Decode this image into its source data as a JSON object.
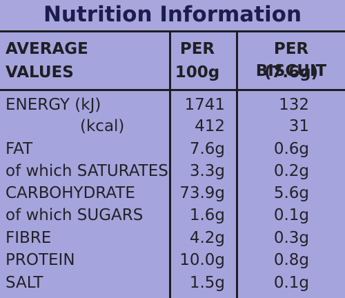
{
  "title": "Nutrition Information",
  "headers": {
    "col0_line1": "AVERAGE",
    "col0_line2": "VALUES",
    "col1_line1": "PER",
    "col1_line2": "100g",
    "col2_line1": "PER BISCUIT",
    "col2_line2": "(7.6g)"
  },
  "rows": [
    {
      "label": "ENERGY (kJ)",
      "per100": "1741",
      "perBiscuit": "132"
    },
    {
      "label": "(kcal)",
      "per100": "412",
      "perBiscuit": "31"
    },
    {
      "label": "FAT",
      "per100": "7.6g",
      "perBiscuit": "0.6g"
    },
    {
      "label": "of which SATURATES",
      "per100": "3.3g",
      "perBiscuit": "0.2g"
    },
    {
      "label": "CARBOHYDRATE",
      "per100": "73.9g",
      "perBiscuit": "5.6g"
    },
    {
      "label": "of which SUGARS",
      "per100": "1.6g",
      "perBiscuit": "0.1g"
    },
    {
      "label": "FIBRE",
      "per100": "4.2g",
      "perBiscuit": "0.3g"
    },
    {
      "label": "PROTEIN",
      "per100": "10.0g",
      "perBiscuit": "0.8g"
    },
    {
      "label": "SALT",
      "per100": "1.5g",
      "perBiscuit": "0.1g"
    }
  ]
}
